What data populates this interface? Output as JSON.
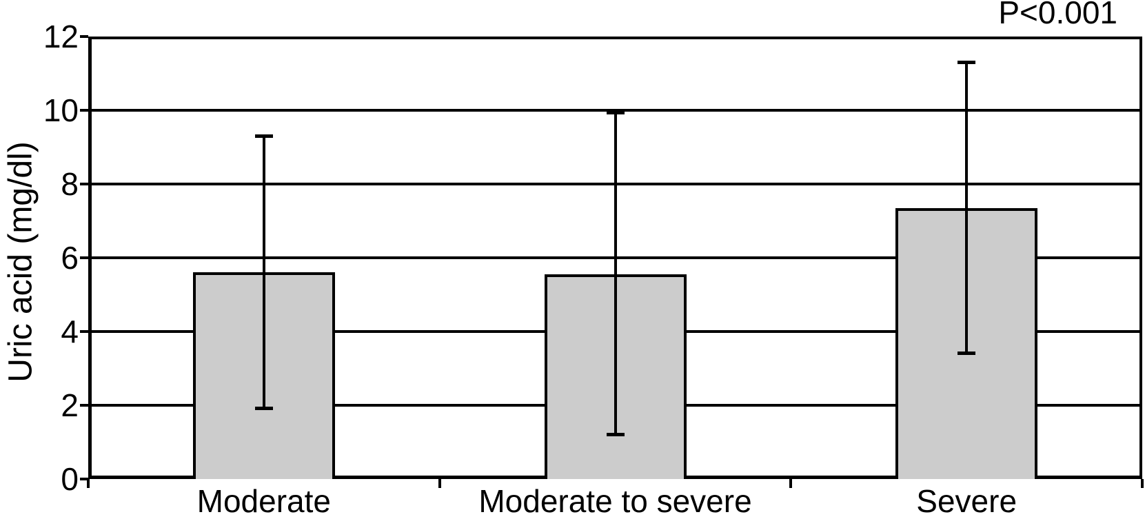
{
  "chart_data": {
    "type": "bar",
    "annotation": "P<0.001",
    "ylabel": "Uric acid (mg/dl)",
    "categories": [
      "Moderate",
      "Moderate to severe",
      "Severe"
    ],
    "values": [
      5.6,
      5.55,
      7.35
    ],
    "error_upper": [
      9.3,
      9.95,
      11.3
    ],
    "error_lower": [
      1.9,
      1.2,
      3.4
    ],
    "error_style": "whiskers-absolute",
    "ylim": [
      0,
      12
    ],
    "yticks": [
      0,
      2,
      4,
      6,
      8,
      10,
      12
    ],
    "grid": true,
    "legend": "none",
    "bar_color": "#cccccc",
    "line_color": "#000000",
    "background_color": "#ffffff"
  }
}
